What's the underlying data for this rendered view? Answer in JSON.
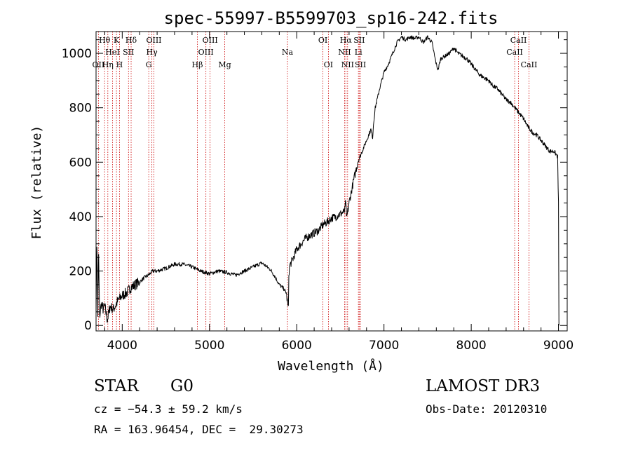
{
  "chart_data": {
    "type": "line",
    "title": "spec-55997-B5599703_sp16-242.fits",
    "xlabel": "Wavelength (Å)",
    "ylabel": "Flux (relative)",
    "xlim": [
      3700,
      9100
    ],
    "ylim": [
      -20,
      1080
    ],
    "xticks": [
      4000,
      5000,
      6000,
      7000,
      8000,
      9000
    ],
    "yticks": [
      0,
      200,
      400,
      600,
      800,
      1000
    ],
    "series": [
      {
        "name": "flux",
        "x": [
          3700,
          3710,
          3720,
          3730,
          3740,
          3760,
          3780,
          3800,
          3830,
          3860,
          3900,
          3950,
          4000,
          4050,
          4100,
          4150,
          4200,
          4250,
          4300,
          4350,
          4400,
          4500,
          4600,
          4700,
          4800,
          4900,
          5000,
          5100,
          5200,
          5300,
          5400,
          5500,
          5600,
          5700,
          5750,
          5800,
          5850,
          5880,
          5900,
          5905,
          5910,
          5920,
          5950,
          6000,
          6050,
          6100,
          6150,
          6200,
          6250,
          6300,
          6350,
          6400,
          6450,
          6500,
          6550,
          6562,
          6570,
          6600,
          6650,
          6700,
          6750,
          6800,
          6850,
          6870,
          6880,
          6900,
          6950,
          7000,
          7050,
          7100,
          7150,
          7200,
          7250,
          7300,
          7350,
          7400,
          7450,
          7500,
          7550,
          7580,
          7600,
          7620,
          7650,
          7700,
          7750,
          7800,
          7850,
          7900,
          7950,
          8000,
          8050,
          8100,
          8150,
          8200,
          8250,
          8300,
          8350,
          8400,
          8450,
          8500,
          8550,
          8600,
          8650,
          8700,
          8750,
          8800,
          8850,
          8900,
          8950,
          8990,
          9000,
          9005
        ],
        "y": [
          60,
          300,
          40,
          260,
          30,
          80,
          60,
          70,
          20,
          70,
          60,
          90,
          110,
          120,
          140,
          150,
          160,
          175,
          185,
          200,
          200,
          210,
          225,
          225,
          215,
          200,
          190,
          200,
          195,
          185,
          200,
          215,
          230,
          205,
          180,
          150,
          135,
          120,
          70,
          60,
          190,
          220,
          240,
          280,
          300,
          320,
          330,
          340,
          350,
          370,
          380,
          395,
          400,
          410,
          420,
          460,
          390,
          450,
          530,
          600,
          640,
          680,
          720,
          690,
          740,
          800,
          870,
          930,
          960,
          1000,
          1040,
          1060,
          1050,
          1060,
          1055,
          1060,
          1040,
          1060,
          1040,
          990,
          960,
          940,
          980,
          990,
          1000,
          1020,
          1000,
          990,
          980,
          960,
          940,
          920,
          910,
          900,
          880,
          870,
          850,
          830,
          820,
          800,
          780,
          760,
          730,
          710,
          700,
          680,
          660,
          640,
          640,
          620,
          450,
          0
        ]
      }
    ],
    "emission_lines": [
      {
        "label": "OII",
        "wave": 3727,
        "row": 3
      },
      {
        "label": "Hθ",
        "wave": 3798,
        "row": 1
      },
      {
        "label": "Hη",
        "wave": 3835,
        "row": 3
      },
      {
        "label": "HeI",
        "wave": 3889,
        "row": 2
      },
      {
        "label": "K",
        "wave": 3934,
        "row": 1
      },
      {
        "label": "H",
        "wave": 3969,
        "row": 3
      },
      {
        "label": "SII",
        "wave": 4072,
        "row": 2
      },
      {
        "label": "Hδ",
        "wave": 4102,
        "row": 1
      },
      {
        "label": "G",
        "wave": 4304,
        "row": 3
      },
      {
        "label": "Hγ",
        "wave": 4340,
        "row": 2
      },
      {
        "label": "OIII",
        "wave": 4363,
        "row": 1
      },
      {
        "label": "Hβ",
        "wave": 4861,
        "row": 3
      },
      {
        "label": "OIII",
        "wave": 4959,
        "row": 2
      },
      {
        "label": "OIII",
        "wave": 5007,
        "row": 1
      },
      {
        "label": "Mg",
        "wave": 5175,
        "row": 3
      },
      {
        "label": "Na",
        "wave": 5894,
        "row": 2
      },
      {
        "label": "OI",
        "wave": 6300,
        "row": 1
      },
      {
        "label": "OI",
        "wave": 6363,
        "row": 3
      },
      {
        "label": "NII",
        "wave": 6548,
        "row": 2
      },
      {
        "label": "Hα",
        "wave": 6563,
        "row": 1
      },
      {
        "label": "NII",
        "wave": 6583,
        "row": 3
      },
      {
        "label": "Li",
        "wave": 6707,
        "row": 2
      },
      {
        "label": "SII",
        "wave": 6716,
        "row": 1
      },
      {
        "label": "SII",
        "wave": 6730,
        "row": 3
      },
      {
        "label": "CaII",
        "wave": 8498,
        "row": 2
      },
      {
        "label": "CaII",
        "wave": 8542,
        "row": 1
      },
      {
        "label": "CaII",
        "wave": 8662,
        "row": 3
      }
    ],
    "colors": {
      "spectrum": "#000000",
      "lines": "#cc0000",
      "axes": "#000000"
    }
  },
  "info": {
    "object_class": "STAR",
    "subclass": "G0",
    "survey": "LAMOST DR3",
    "cz": "cz = −54.3 ± 59.2 km/s",
    "obs_date": "Obs-Date: 20120310",
    "radec": "RA = 163.96454, DEC =  29.30273"
  }
}
